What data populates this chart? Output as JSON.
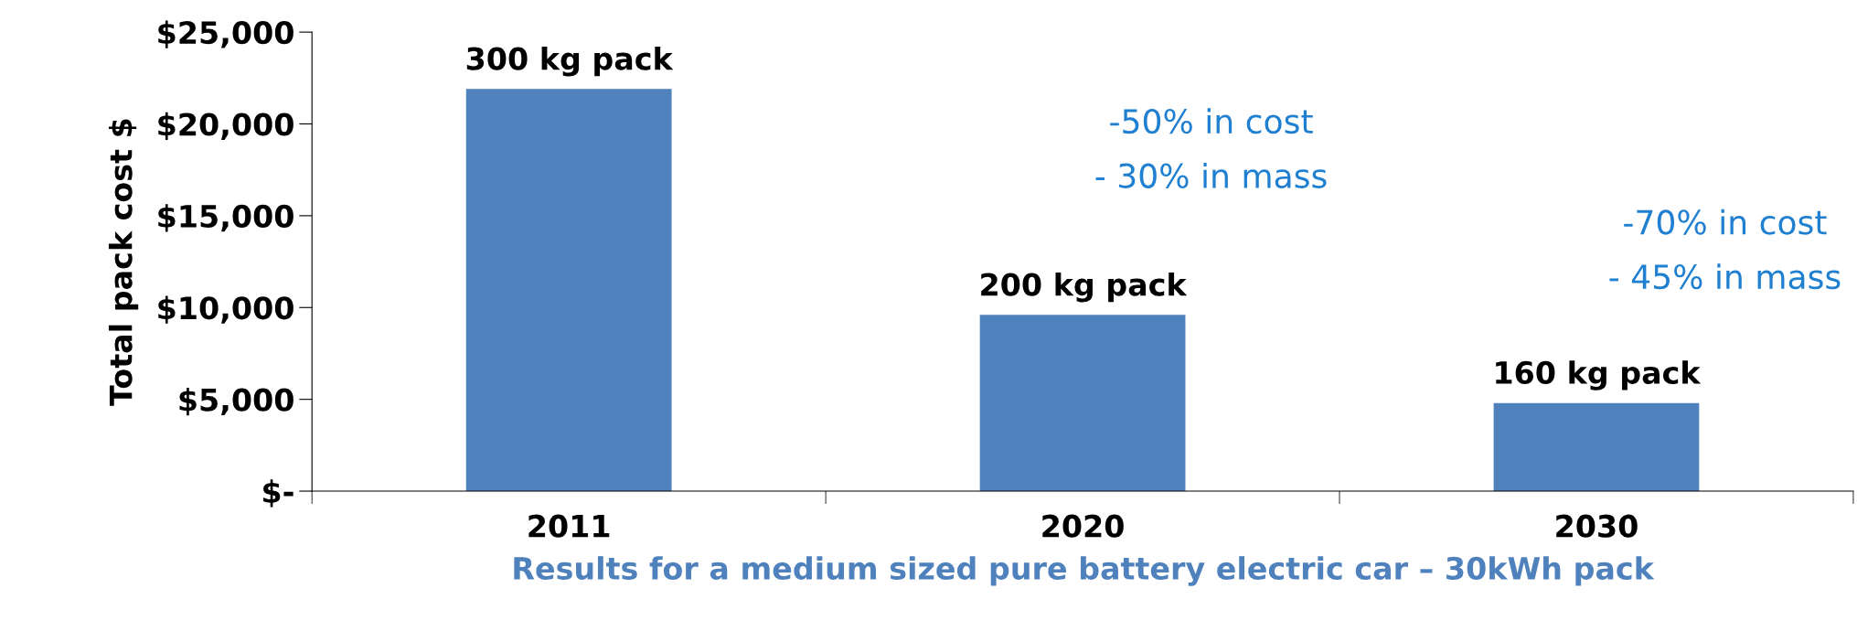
{
  "chart_data": {
    "type": "bar",
    "xlabel": "Results for a medium sized pure battery electric car – 30kWh pack",
    "ylabel": "Total pack cost $",
    "categories": [
      "2011",
      "2020",
      "2030"
    ],
    "values": [
      21900,
      9600,
      4800
    ],
    "color": "#4f81bd",
    "ylim": [
      0,
      25000
    ],
    "yticks": [
      {
        "value": 0,
        "label": "$-"
      },
      {
        "value": 5000,
        "label": "$5,000"
      },
      {
        "value": 10000,
        "label": "$10,000"
      },
      {
        "value": 15000,
        "label": "$15,000"
      },
      {
        "value": 20000,
        "label": "$20,000"
      },
      {
        "value": 25000,
        "label": "$25,000"
      }
    ],
    "grid": false,
    "legend": false,
    "annotations": [
      {
        "text": "300 kg pack",
        "x": "2011",
        "y": 21900
      },
      {
        "text": "200 kg pack",
        "x": "2020",
        "y": 9600
      },
      {
        "text": "160 kg pack",
        "x": "2030",
        "y": 4800
      },
      "-50% in cost\n- 30% in mass",
      "-70% in cost\n- 45% in mass"
    ]
  }
}
